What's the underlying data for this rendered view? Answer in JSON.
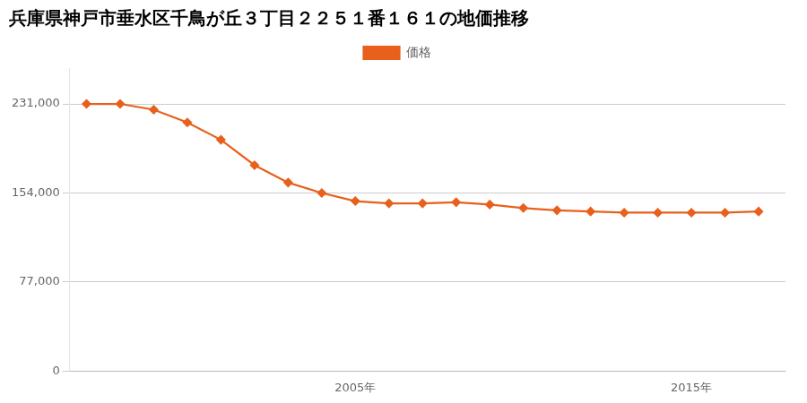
{
  "chart_data": {
    "type": "line",
    "title": "兵庫県神戸市垂水区千鳥が丘３丁目２２５１番１６１の地価推移",
    "x": [
      1997,
      1998,
      1999,
      2000,
      2001,
      2002,
      2003,
      2004,
      2005,
      2006,
      2007,
      2008,
      2009,
      2010,
      2011,
      2012,
      2013,
      2014,
      2015,
      2016,
      2017
    ],
    "series": [
      {
        "name": "価格",
        "color": "#e8601c",
        "marker": "diamond",
        "values": [
          231000,
          231000,
          226000,
          215000,
          200000,
          178000,
          163000,
          154000,
          147000,
          145000,
          145000,
          146000,
          144000,
          141000,
          139000,
          138000,
          137000,
          137000,
          137000,
          137000,
          138000
        ]
      }
    ],
    "xlim": [
      1996.5,
      2017.8
    ],
    "xticks": [
      {
        "value": 2005,
        "label": "2005年"
      },
      {
        "value": 2015,
        "label": "2015年"
      }
    ],
    "ylim": [
      0,
      262000
    ],
    "yticks": [
      0,
      {
        "value": 77000,
        "label": "77,000"
      },
      {
        "value": 154000,
        "label": "154,000"
      },
      {
        "value": 231000,
        "label": "231,000"
      }
    ],
    "grid": "y",
    "legend": "top"
  }
}
